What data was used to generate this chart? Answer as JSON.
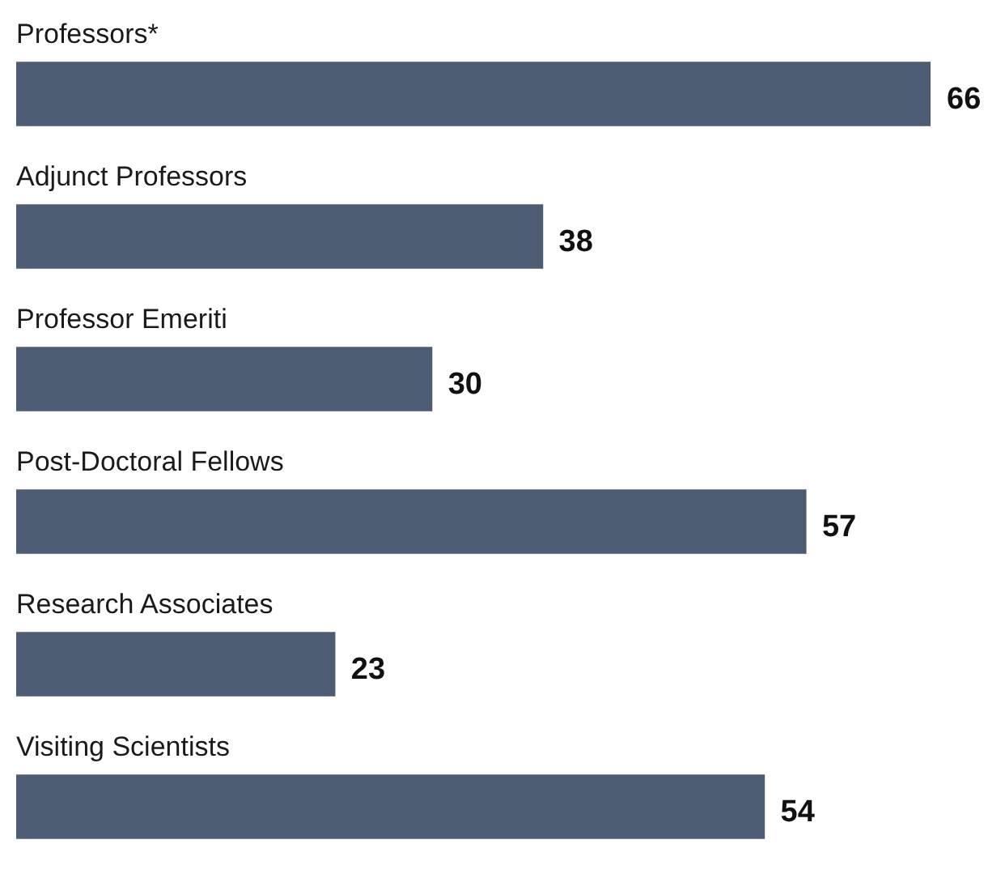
{
  "chart_data": {
    "type": "bar",
    "orientation": "horizontal",
    "categories": [
      "Professors*",
      "Adjunct Professors",
      "Professor Emeriti",
      "Post-Doctoral Fellows",
      "Research Associates",
      "Visiting Scientists"
    ],
    "values": [
      66,
      38,
      30,
      57,
      23,
      54
    ],
    "color": "#4d5b73",
    "data_labels": true,
    "legend": false
  }
}
